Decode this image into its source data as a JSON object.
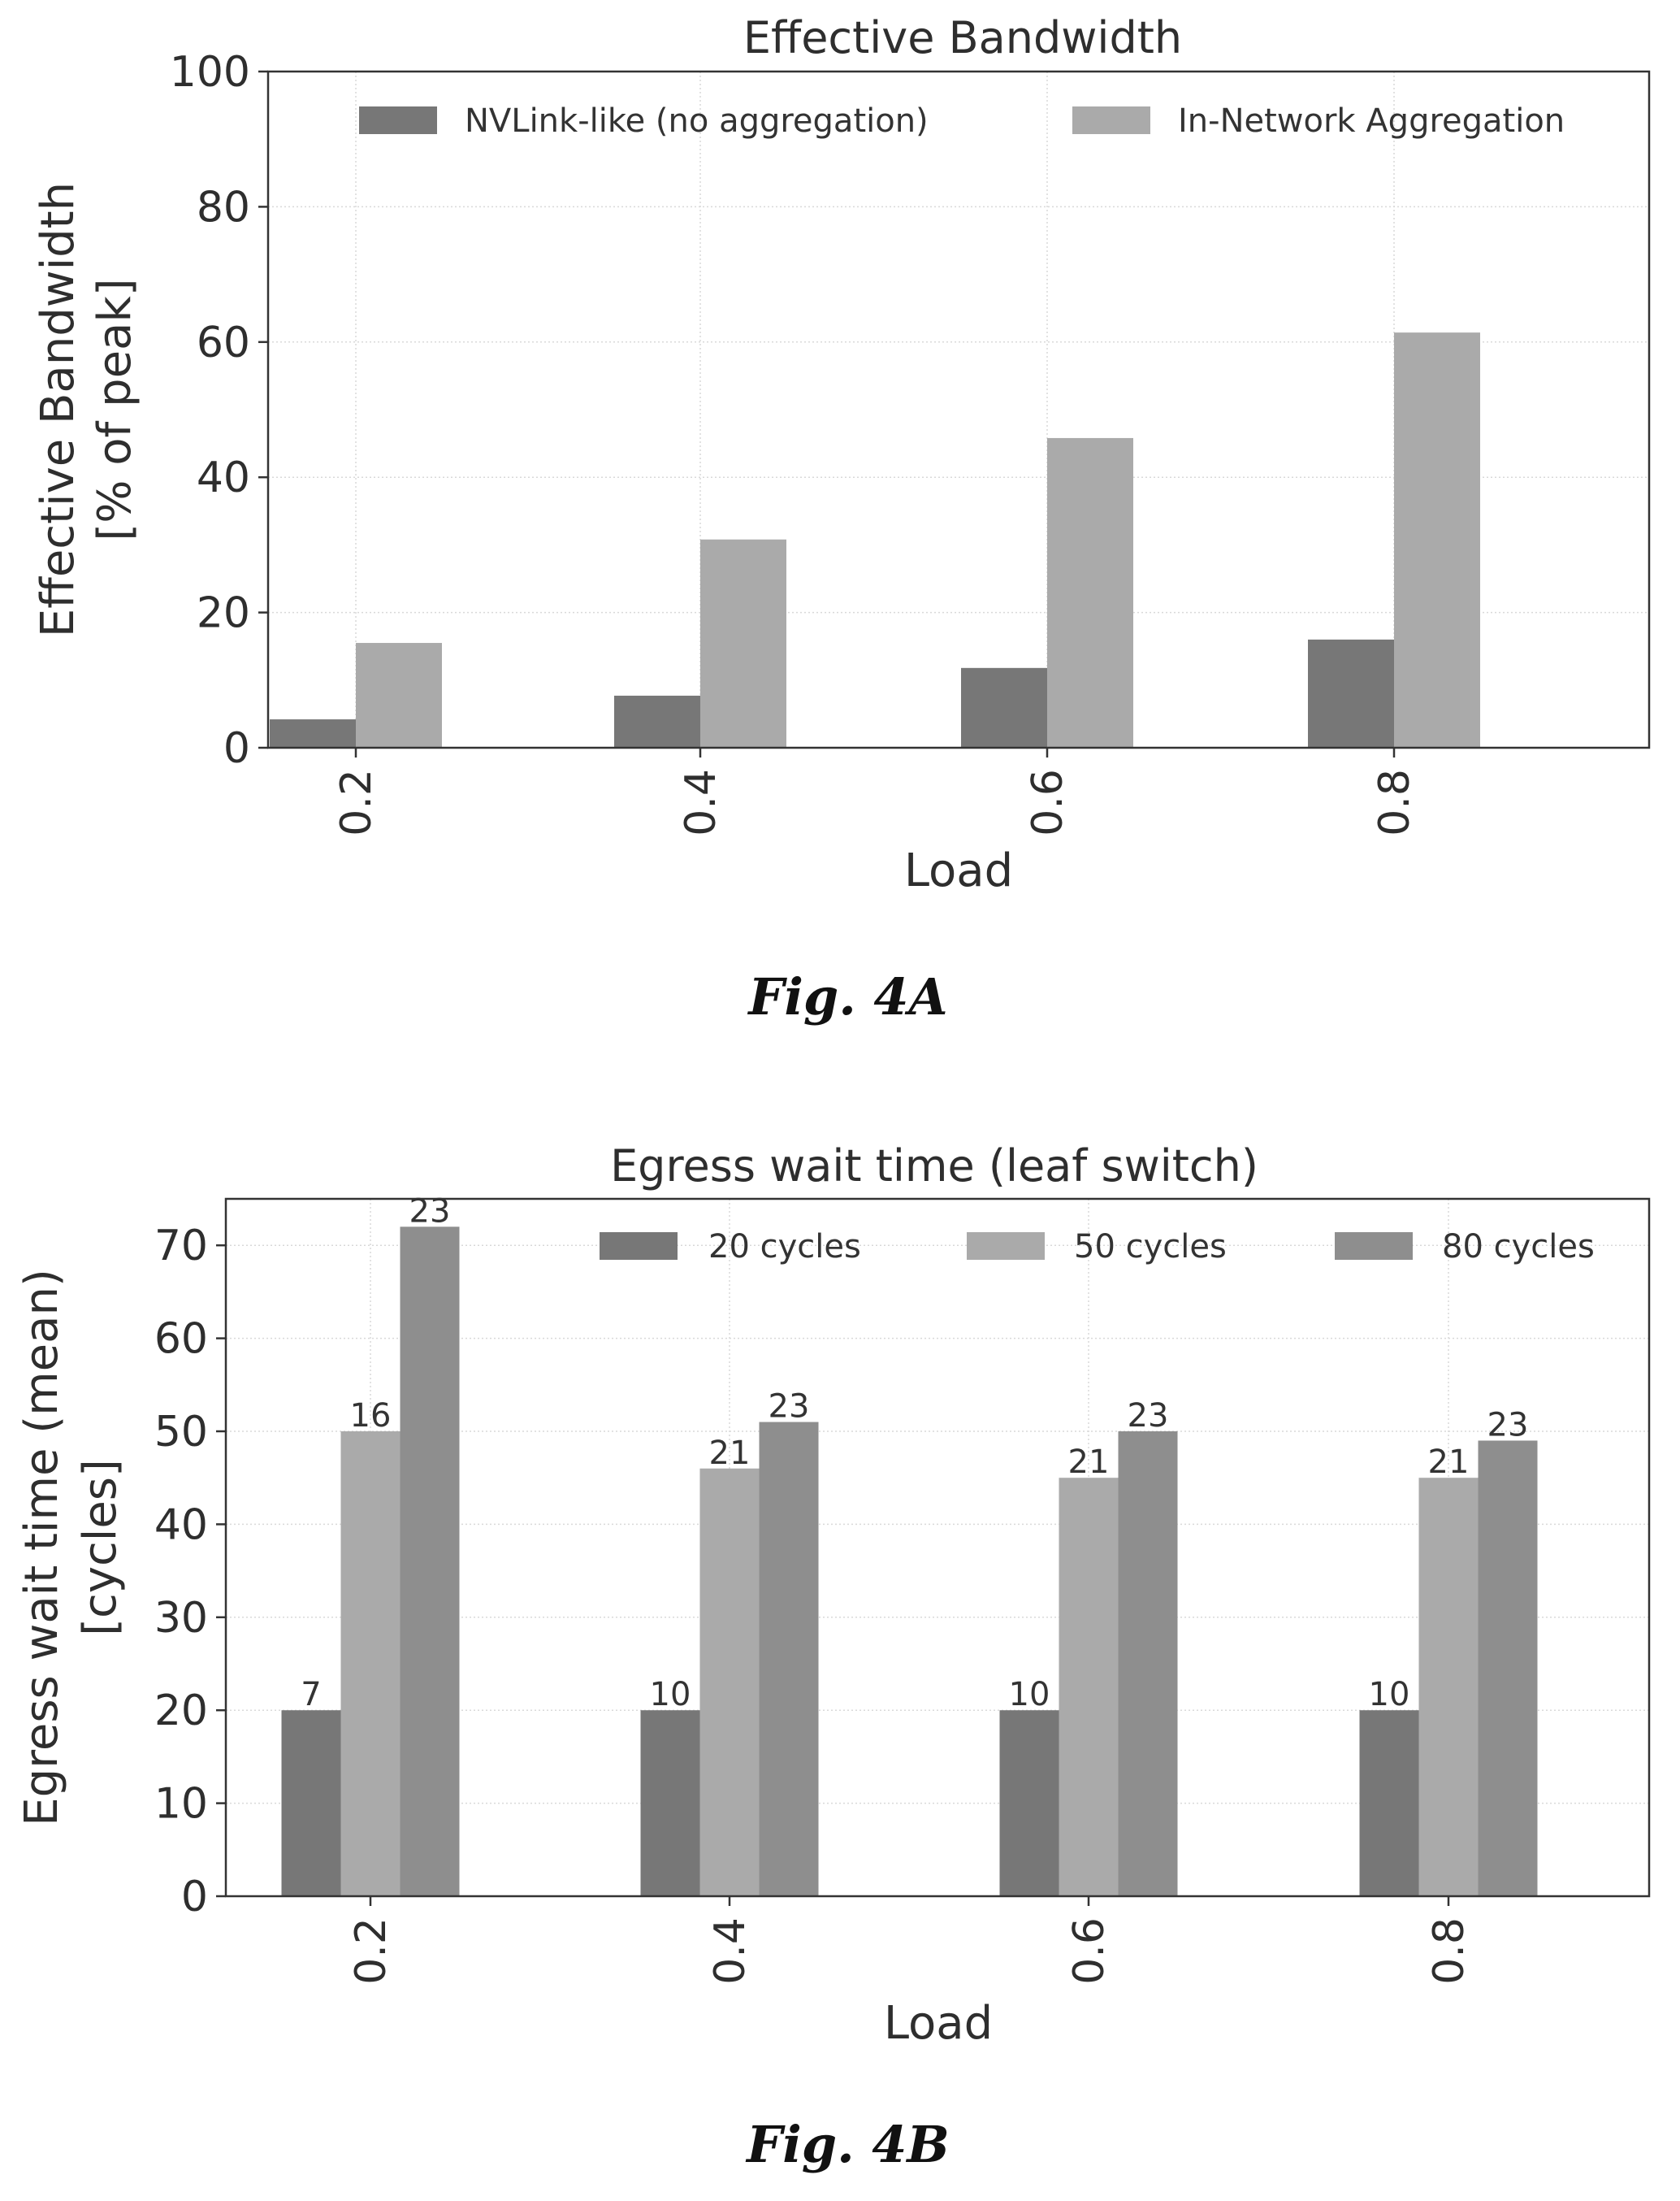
{
  "figures": [
    {
      "caption": "Fig. 4A"
    },
    {
      "caption": "Fig. 4B"
    }
  ],
  "chart_data": [
    {
      "type": "bar",
      "title": "Effective Bandwidth",
      "xlabel": "Load",
      "ylabel": [
        "Effective Bandwidth",
        "[% of peak]"
      ],
      "categories": [
        "0.2",
        "0.4",
        "0.6",
        "0.8"
      ],
      "series": [
        {
          "name": "NVLink-like (no aggregation)",
          "values": [
            4.2,
            7.7,
            11.8,
            16.0
          ],
          "color": "#777777"
        },
        {
          "name": "In-Network Aggregation",
          "values": [
            15.5,
            30.8,
            45.8,
            61.4
          ],
          "color": "#aaaaaa"
        }
      ],
      "ylim": [
        0,
        100
      ],
      "yticks": [
        "0",
        "20",
        "40",
        "60",
        "80",
        "100"
      ],
      "grid": true,
      "legend": "top"
    },
    {
      "type": "bar",
      "title": "Egress wait time (leaf switch)",
      "xlabel": "Load",
      "ylabel": [
        "Egress wait time (mean)",
        "[cycles]"
      ],
      "categories": [
        "0.2",
        "0.4",
        "0.6",
        "0.8"
      ],
      "series": [
        {
          "name": "20 cycles",
          "values": [
            20,
            20,
            20,
            20
          ],
          "labels": [
            "7",
            "10",
            "10",
            "10"
          ],
          "color": "#777777"
        },
        {
          "name": "50 cycles",
          "values": [
            50,
            46,
            45,
            45
          ],
          "labels": [
            "16",
            "21",
            "21",
            "21"
          ],
          "color": "#aaaaaa"
        },
        {
          "name": "80 cycles",
          "values": [
            72,
            51,
            50,
            49
          ],
          "labels": [
            "23",
            "23",
            "23",
            "23"
          ],
          "color": "#8e8e8e"
        }
      ],
      "ylim": [
        0,
        75
      ],
      "yticks": [
        "0",
        "10",
        "20",
        "30",
        "40",
        "50",
        "60",
        "70"
      ],
      "grid": true,
      "legend": "top-right"
    }
  ]
}
